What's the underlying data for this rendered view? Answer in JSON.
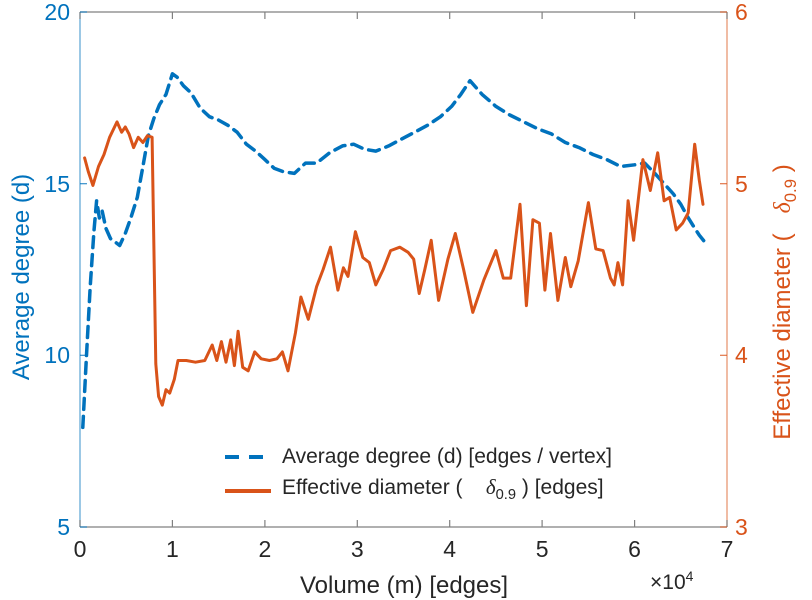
{
  "chart_data": {
    "type": "line",
    "title": "",
    "xlabel": "Volume (m) [edges]",
    "x_mult_base": "×10",
    "x_mult_exp": "4",
    "xlim": [
      0,
      7
    ],
    "x_ticks": [
      0,
      1,
      2,
      3,
      4,
      5,
      6,
      7
    ],
    "grid": "off",
    "legend_position": "inside-bottom-center",
    "left_axis": {
      "label": "Average degree (d)",
      "color": "#0072BD",
      "lim": [
        5,
        20
      ],
      "ticks": [
        5,
        10,
        15,
        20
      ]
    },
    "right_axis": {
      "label_pre": "Effective diameter (   ",
      "label_delta": "δ",
      "label_sub": "0.9",
      "label_post": " )",
      "color": "#D95319",
      "lim": [
        3,
        6
      ],
      "ticks": [
        3,
        4,
        5,
        6
      ]
    },
    "spine_gray": "#808080",
    "series": [
      {
        "name": "Average degree (d) [edges / vertex]",
        "axis": "left",
        "style": "dashed",
        "color": "#0072BD",
        "points": [
          [
            0.03,
            7.9
          ],
          [
            0.07,
            10.0
          ],
          [
            0.11,
            12.0
          ],
          [
            0.15,
            13.6
          ],
          [
            0.18,
            14.5
          ],
          [
            0.21,
            14.0
          ],
          [
            0.24,
            14.2
          ],
          [
            0.28,
            13.7
          ],
          [
            0.33,
            13.4
          ],
          [
            0.38,
            13.3
          ],
          [
            0.43,
            13.2
          ],
          [
            0.49,
            13.55
          ],
          [
            0.55,
            14.0
          ],
          [
            0.62,
            14.6
          ],
          [
            0.68,
            15.5
          ],
          [
            0.74,
            16.4
          ],
          [
            0.8,
            16.9
          ],
          [
            0.86,
            17.3
          ],
          [
            0.93,
            17.6
          ],
          [
            1.0,
            18.2
          ],
          [
            1.05,
            18.1
          ],
          [
            1.12,
            17.85
          ],
          [
            1.2,
            17.65
          ],
          [
            1.3,
            17.2
          ],
          [
            1.4,
            16.95
          ],
          [
            1.5,
            16.85
          ],
          [
            1.6,
            16.7
          ],
          [
            1.7,
            16.5
          ],
          [
            1.8,
            16.15
          ],
          [
            1.9,
            15.95
          ],
          [
            2.0,
            15.7
          ],
          [
            2.1,
            15.45
          ],
          [
            2.2,
            15.35
          ],
          [
            2.32,
            15.3
          ],
          [
            2.44,
            15.6
          ],
          [
            2.56,
            15.6
          ],
          [
            2.7,
            15.9
          ],
          [
            2.84,
            16.1
          ],
          [
            2.96,
            16.15
          ],
          [
            3.08,
            16.0
          ],
          [
            3.2,
            15.95
          ],
          [
            3.34,
            16.1
          ],
          [
            3.48,
            16.3
          ],
          [
            3.62,
            16.5
          ],
          [
            3.76,
            16.7
          ],
          [
            3.9,
            16.95
          ],
          [
            4.02,
            17.25
          ],
          [
            4.12,
            17.6
          ],
          [
            4.22,
            18.0
          ],
          [
            4.35,
            17.6
          ],
          [
            4.5,
            17.25
          ],
          [
            4.65,
            17.0
          ],
          [
            4.8,
            16.8
          ],
          [
            4.95,
            16.6
          ],
          [
            5.1,
            16.45
          ],
          [
            5.25,
            16.2
          ],
          [
            5.4,
            16.05
          ],
          [
            5.55,
            15.85
          ],
          [
            5.7,
            15.7
          ],
          [
            5.85,
            15.5
          ],
          [
            6.0,
            15.55
          ],
          [
            6.11,
            15.6
          ],
          [
            6.22,
            15.3
          ],
          [
            6.32,
            15.0
          ],
          [
            6.42,
            14.7
          ],
          [
            6.5,
            14.4
          ],
          [
            6.57,
            14.05
          ],
          [
            6.64,
            13.75
          ],
          [
            6.7,
            13.5
          ],
          [
            6.76,
            13.3
          ]
        ]
      },
      {
        "name": "Effective diameter ( δ_0.9 ) [edges]",
        "axis": "right",
        "style": "solid",
        "color": "#D95319",
        "points": [
          [
            0.05,
            5.15
          ],
          [
            0.09,
            5.07
          ],
          [
            0.14,
            4.99
          ],
          [
            0.2,
            5.1
          ],
          [
            0.26,
            5.17
          ],
          [
            0.32,
            5.27
          ],
          [
            0.4,
            5.36
          ],
          [
            0.45,
            5.3
          ],
          [
            0.49,
            5.33
          ],
          [
            0.53,
            5.29
          ],
          [
            0.58,
            5.21
          ],
          [
            0.63,
            5.27
          ],
          [
            0.68,
            5.24
          ],
          [
            0.73,
            5.28
          ],
          [
            0.78,
            5.27
          ],
          [
            0.82,
            3.95
          ],
          [
            0.85,
            3.76
          ],
          [
            0.89,
            3.71
          ],
          [
            0.93,
            3.8
          ],
          [
            0.97,
            3.78
          ],
          [
            1.02,
            3.86
          ],
          [
            1.06,
            3.97
          ],
          [
            1.15,
            3.97
          ],
          [
            1.25,
            3.96
          ],
          [
            1.35,
            3.97
          ],
          [
            1.43,
            4.06
          ],
          [
            1.48,
            3.97
          ],
          [
            1.53,
            4.08
          ],
          [
            1.58,
            3.96
          ],
          [
            1.63,
            4.09
          ],
          [
            1.67,
            3.94
          ],
          [
            1.71,
            4.14
          ],
          [
            1.76,
            3.93
          ],
          [
            1.82,
            3.91
          ],
          [
            1.89,
            4.02
          ],
          [
            1.96,
            3.98
          ],
          [
            2.05,
            3.97
          ],
          [
            2.13,
            3.98
          ],
          [
            2.19,
            4.02
          ],
          [
            2.25,
            3.91
          ],
          [
            2.33,
            4.13
          ],
          [
            2.39,
            4.34
          ],
          [
            2.47,
            4.21
          ],
          [
            2.56,
            4.4
          ],
          [
            2.63,
            4.5
          ],
          [
            2.71,
            4.63
          ],
          [
            2.79,
            4.38
          ],
          [
            2.85,
            4.51
          ],
          [
            2.9,
            4.46
          ],
          [
            2.98,
            4.72
          ],
          [
            3.06,
            4.57
          ],
          [
            3.13,
            4.54
          ],
          [
            3.2,
            4.41
          ],
          [
            3.28,
            4.5
          ],
          [
            3.36,
            4.61
          ],
          [
            3.46,
            4.63
          ],
          [
            3.55,
            4.6
          ],
          [
            3.61,
            4.56
          ],
          [
            3.67,
            4.36
          ],
          [
            3.73,
            4.5
          ],
          [
            3.8,
            4.67
          ],
          [
            3.88,
            4.32
          ],
          [
            3.98,
            4.56
          ],
          [
            4.06,
            4.71
          ],
          [
            4.15,
            4.5
          ],
          [
            4.25,
            4.25
          ],
          [
            4.37,
            4.44
          ],
          [
            4.5,
            4.61
          ],
          [
            4.58,
            4.45
          ],
          [
            4.66,
            4.45
          ],
          [
            4.76,
            4.88
          ],
          [
            4.83,
            4.29
          ],
          [
            4.9,
            4.79
          ],
          [
            4.97,
            4.77
          ],
          [
            5.03,
            4.38
          ],
          [
            5.09,
            4.71
          ],
          [
            5.17,
            4.32
          ],
          [
            5.25,
            4.57
          ],
          [
            5.31,
            4.4
          ],
          [
            5.39,
            4.55
          ],
          [
            5.5,
            4.89
          ],
          [
            5.58,
            4.62
          ],
          [
            5.66,
            4.61
          ],
          [
            5.74,
            4.45
          ],
          [
            5.78,
            4.41
          ],
          [
            5.82,
            4.54
          ],
          [
            5.87,
            4.41
          ],
          [
            5.93,
            4.9
          ],
          [
            5.99,
            4.67
          ],
          [
            6.09,
            5.14
          ],
          [
            6.17,
            4.96
          ],
          [
            6.25,
            5.18
          ],
          [
            6.32,
            4.9
          ],
          [
            6.38,
            4.92
          ],
          [
            6.45,
            4.73
          ],
          [
            6.52,
            4.77
          ],
          [
            6.58,
            4.83
          ],
          [
            6.65,
            5.23
          ],
          [
            6.7,
            5.02
          ],
          [
            6.74,
            4.88
          ]
        ]
      }
    ],
    "legend": {
      "entry1": "Average degree (d) [edges / vertex]",
      "entry2_pre": "Effective diameter (    ",
      "entry2_delta": "δ",
      "entry2_sub": "0.9",
      "entry2_post": " ) [edges]"
    }
  }
}
